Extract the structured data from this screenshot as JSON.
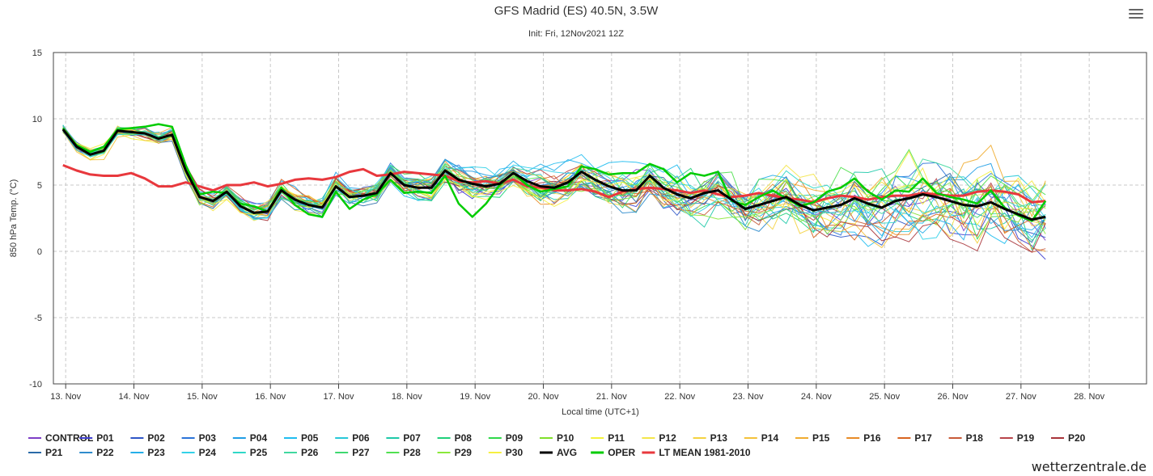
{
  "chart_data": {
    "type": "line",
    "title": "GFS Madrid (ES) 40.5N, 3.5W",
    "subtitle": "Init: Fri, 12Nov2021 12Z",
    "xlabel": "Local time (UTC+1)",
    "ylabel": "850 hPa Temp. (°C)",
    "ylim": [
      -10,
      15
    ],
    "yticks": [
      -10,
      -5,
      0,
      5,
      10,
      15
    ],
    "xlim": [
      12.82,
      28.84
    ],
    "xticks": [
      {
        "pos": 13,
        "label": "13. Nov"
      },
      {
        "pos": 14,
        "label": "14. Nov"
      },
      {
        "pos": 15,
        "label": "15. Nov"
      },
      {
        "pos": 16,
        "label": "16. Nov"
      },
      {
        "pos": 17,
        "label": "17. Nov"
      },
      {
        "pos": 18,
        "label": "18. Nov"
      },
      {
        "pos": 19,
        "label": "19. Nov"
      },
      {
        "pos": 20,
        "label": "20. Nov"
      },
      {
        "pos": 21,
        "label": "21. Nov"
      },
      {
        "pos": 22,
        "label": "22. Nov"
      },
      {
        "pos": 23,
        "label": "23. Nov"
      },
      {
        "pos": 24,
        "label": "24. Nov"
      },
      {
        "pos": 25,
        "label": "25. Nov"
      },
      {
        "pos": 26,
        "label": "26. Nov"
      },
      {
        "pos": 27,
        "label": "27. Nov"
      },
      {
        "pos": 28,
        "label": "28. Nov"
      }
    ],
    "grid": true,
    "legend_position": "bottom",
    "x_start_day": 12.96,
    "x_step_days": 0.2,
    "mean_series": {
      "avg": {
        "name": "AVG",
        "color": "#000000",
        "values": [
          9.2,
          7.9,
          7.3,
          7.6,
          9.1,
          9.0,
          8.9,
          8.5,
          8.8,
          6.1,
          4.1,
          3.8,
          4.5,
          3.4,
          2.9,
          3.0,
          4.6,
          3.9,
          3.5,
          3.3,
          4.9,
          4.1,
          4.2,
          4.4,
          5.9,
          5.0,
          4.8,
          4.8,
          6.1,
          5.4,
          5.1,
          4.9,
          5.1,
          5.9,
          5.3,
          4.9,
          4.8,
          5.2,
          6.0,
          5.4,
          4.9,
          4.6,
          4.6,
          5.7,
          4.8,
          4.3,
          4.0,
          4.4,
          4.6,
          3.9,
          3.2,
          3.5,
          3.8,
          4.1,
          3.5,
          3.1,
          3.3,
          3.5,
          4.0,
          3.6,
          3.3,
          3.8,
          4.0,
          4.3,
          4.1,
          3.8,
          3.5,
          3.4,
          3.7,
          3.2,
          2.8,
          2.4,
          2.6
        ]
      },
      "oper": {
        "name": "OPER",
        "color": "#00cc00",
        "values": [
          9.3,
          8.0,
          7.5,
          7.9,
          9.2,
          9.3,
          9.4,
          9.6,
          9.4,
          6.5,
          4.3,
          4.5,
          4.4,
          3.6,
          3.4,
          3.0,
          4.8,
          3.5,
          2.8,
          2.6,
          4.5,
          3.2,
          3.9,
          4.3,
          5.4,
          4.4,
          4.5,
          4.4,
          5.7,
          3.6,
          2.6,
          3.6,
          5.0,
          5.9,
          5.0,
          4.5,
          4.7,
          4.9,
          6.4,
          6.2,
          5.8,
          5.9,
          5.9,
          6.6,
          6.2,
          5.2,
          5.9,
          5.7,
          6.0,
          3.8,
          3.5,
          4.1,
          4.6,
          4.0,
          3.4,
          3.7,
          4.5,
          4.8,
          5.5,
          4.5,
          3.9,
          4.6,
          4.5,
          5.5,
          4.4,
          4.1,
          3.9,
          3.6,
          4.6,
          3.3,
          2.7,
          2.3,
          3.8
        ]
      },
      "ltmean": {
        "name": "LT MEAN 1981-2010",
        "color": "#e8383d",
        "values": [
          6.5,
          6.1,
          5.8,
          5.7,
          5.7,
          5.9,
          5.5,
          4.9,
          4.9,
          5.2,
          4.9,
          4.6,
          5.0,
          5.0,
          5.2,
          4.9,
          5.1,
          5.4,
          5.5,
          5.4,
          5.6,
          6.0,
          6.2,
          5.7,
          5.8,
          6.0,
          5.9,
          5.8,
          5.7,
          5.3,
          5.2,
          5.3,
          5.1,
          5.4,
          4.9,
          4.8,
          4.6,
          4.6,
          4.7,
          4.5,
          4.1,
          4.5,
          4.7,
          4.8,
          4.7,
          4.6,
          4.4,
          4.6,
          4.3,
          4.1,
          4.2,
          4.4,
          4.2,
          4.0,
          3.9,
          3.7,
          4.0,
          4.2,
          4.1,
          3.9,
          4.1,
          4.2,
          4.2,
          4.4,
          4.3,
          4.2,
          4.2,
          4.5,
          4.6,
          4.5,
          4.3,
          3.7,
          3.8
        ]
      }
    },
    "series_colors": {
      "CONTROL": "#7e3fc7",
      "P01": "#3f3fd0",
      "P02": "#2e55c6",
      "P03": "#2b74d9",
      "P04": "#1f9de6",
      "P05": "#1fbdf0",
      "P06": "#27c8d8",
      "P07": "#1ec9a8",
      "P08": "#1ed07a",
      "P09": "#2fd84a",
      "P10": "#7fe02a",
      "P11": "#f2f23a",
      "P12": "#f4e64a",
      "P13": "#f4d240",
      "P14": "#f4c23a",
      "P15": "#f0ac30",
      "P16": "#e88b26",
      "P17": "#d8641f",
      "P18": "#c85a38",
      "P19": "#b8444a",
      "P20": "#a8343a",
      "P21": "#2a6aa8",
      "P22": "#2f8ccc",
      "P23": "#25aee8",
      "P24": "#33d2e8",
      "P25": "#2fd8c8",
      "P26": "#40d8a0",
      "P27": "#3ed870",
      "P28": "#50e050",
      "P29": "#8ae83a",
      "P30": "#f6f040"
    },
    "legend": [
      "CONTROL",
      "P01",
      "P02",
      "P03",
      "P04",
      "P05",
      "P06",
      "P07",
      "P08",
      "P09",
      "P10",
      "P11",
      "P12",
      "P13",
      "P14",
      "P15",
      "P16",
      "P17",
      "P18",
      "P19",
      "P20",
      "P21",
      "P22",
      "P23",
      "P24",
      "P25",
      "P26",
      "P27",
      "P28",
      "P29",
      "P30",
      "AVG",
      "OPER",
      "LT MEAN 1981-2010"
    ]
  },
  "credit": "wetterzentrale.de",
  "menu_icon": "hamburger-menu-icon"
}
